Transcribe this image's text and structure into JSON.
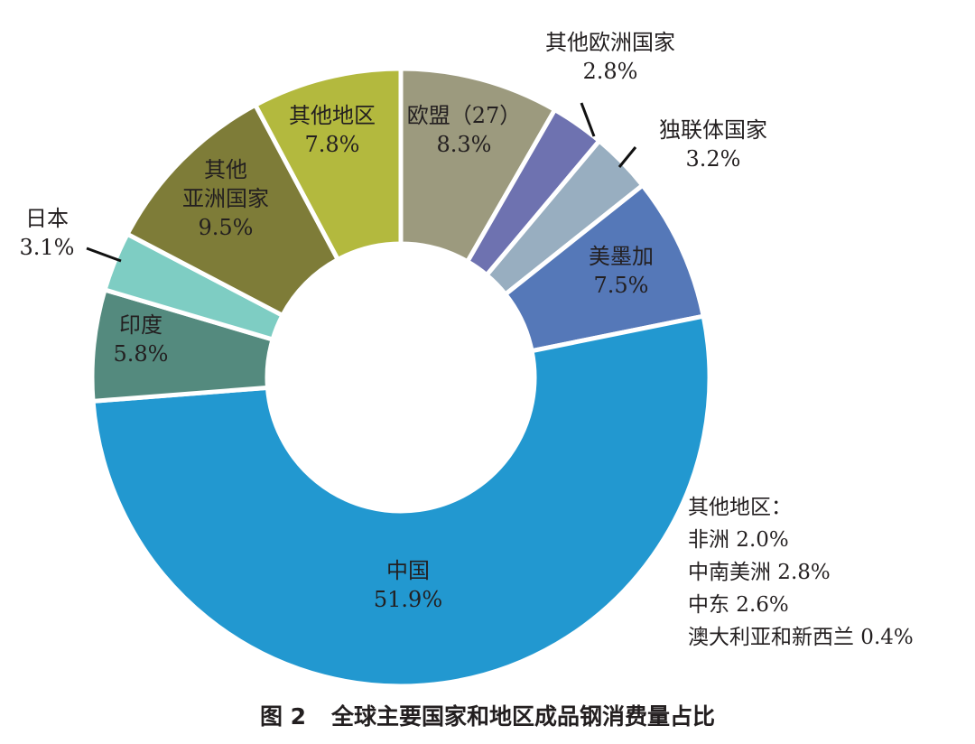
{
  "chart_data": {
    "type": "pie",
    "subtype": "donut",
    "unit": "%",
    "slices": [
      {
        "label": "欧盟（27）",
        "value": 8.3,
        "display": "8.3%",
        "color": "#9c9a7e"
      },
      {
        "label": "其他欧洲国家",
        "value": 2.8,
        "display": "2.8%",
        "color": "#6e72b0"
      },
      {
        "label": "独联体国家",
        "value": 3.2,
        "display": "3.2%",
        "color": "#98aec0"
      },
      {
        "label": "美墨加",
        "value": 7.5,
        "display": "7.5%",
        "color": "#5578b8"
      },
      {
        "label": "中国",
        "value": 51.9,
        "display": "51.9%",
        "color": "#2298d0"
      },
      {
        "label": "印度",
        "value": 5.8,
        "display": "5.8%",
        "color": "#548a7e"
      },
      {
        "label": "日本",
        "value": 3.1,
        "display": "3.1%",
        "color": "#7ecdc3"
      },
      {
        "label": "其他亚洲国家",
        "value": 9.5,
        "display": "9.5%",
        "color": "#7e7c38",
        "label_lines": [
          "其他",
          "亚洲国家"
        ]
      },
      {
        "label": "其他地区",
        "value": 7.8,
        "display": "7.8%",
        "color": "#b3b93e"
      }
    ],
    "other_regions_note": {
      "heading": "其他地区：",
      "items": [
        "非洲 2.0%",
        "中南美洲 2.8%",
        "中东 2.6%",
        "澳大利亚和新西兰 0.4%"
      ]
    }
  },
  "caption": {
    "figure_no": "图 2",
    "title": "全球主要国家和地区成品钢消费量占比"
  }
}
